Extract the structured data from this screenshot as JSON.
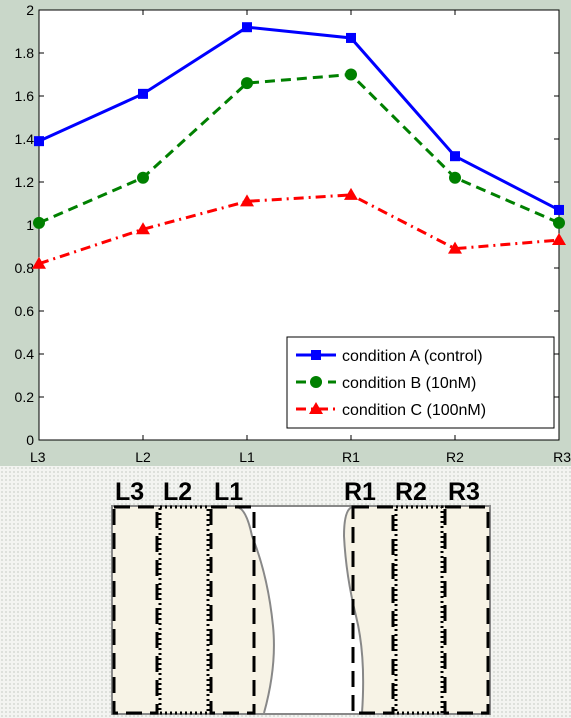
{
  "chart_data": {
    "type": "line",
    "categories": [
      "L3",
      "L2",
      "L1",
      "R1",
      "R2",
      "R3"
    ],
    "ylim": [
      0,
      2
    ],
    "yticks": [
      "0",
      "0.2",
      "0.4",
      "0.6",
      "0.8",
      "1",
      "1.2",
      "1.4",
      "1.6",
      "1.8",
      "2"
    ],
    "grid": false,
    "legend_position": "bottom-right",
    "series": [
      {
        "name": "condition A (control)",
        "values": [
          1.39,
          1.61,
          1.92,
          1.87,
          1.32,
          1.07
        ],
        "color": "#0000ff",
        "marker": "square",
        "line_style": "solid"
      },
      {
        "name": "condition B (10nM)",
        "values": [
          1.01,
          1.22,
          1.66,
          1.7,
          1.22,
          1.01
        ],
        "color": "#008000",
        "marker": "circle",
        "line_style": "dashed"
      },
      {
        "name": "condition C (100nM)",
        "values": [
          0.82,
          0.98,
          1.11,
          1.14,
          0.89,
          0.93
        ],
        "color": "#ff0000",
        "marker": "triangle",
        "line_style": "dash-dot"
      }
    ]
  },
  "diagram": {
    "labels": [
      "L3",
      "L2",
      "L1",
      "R1",
      "R2",
      "R3"
    ]
  }
}
